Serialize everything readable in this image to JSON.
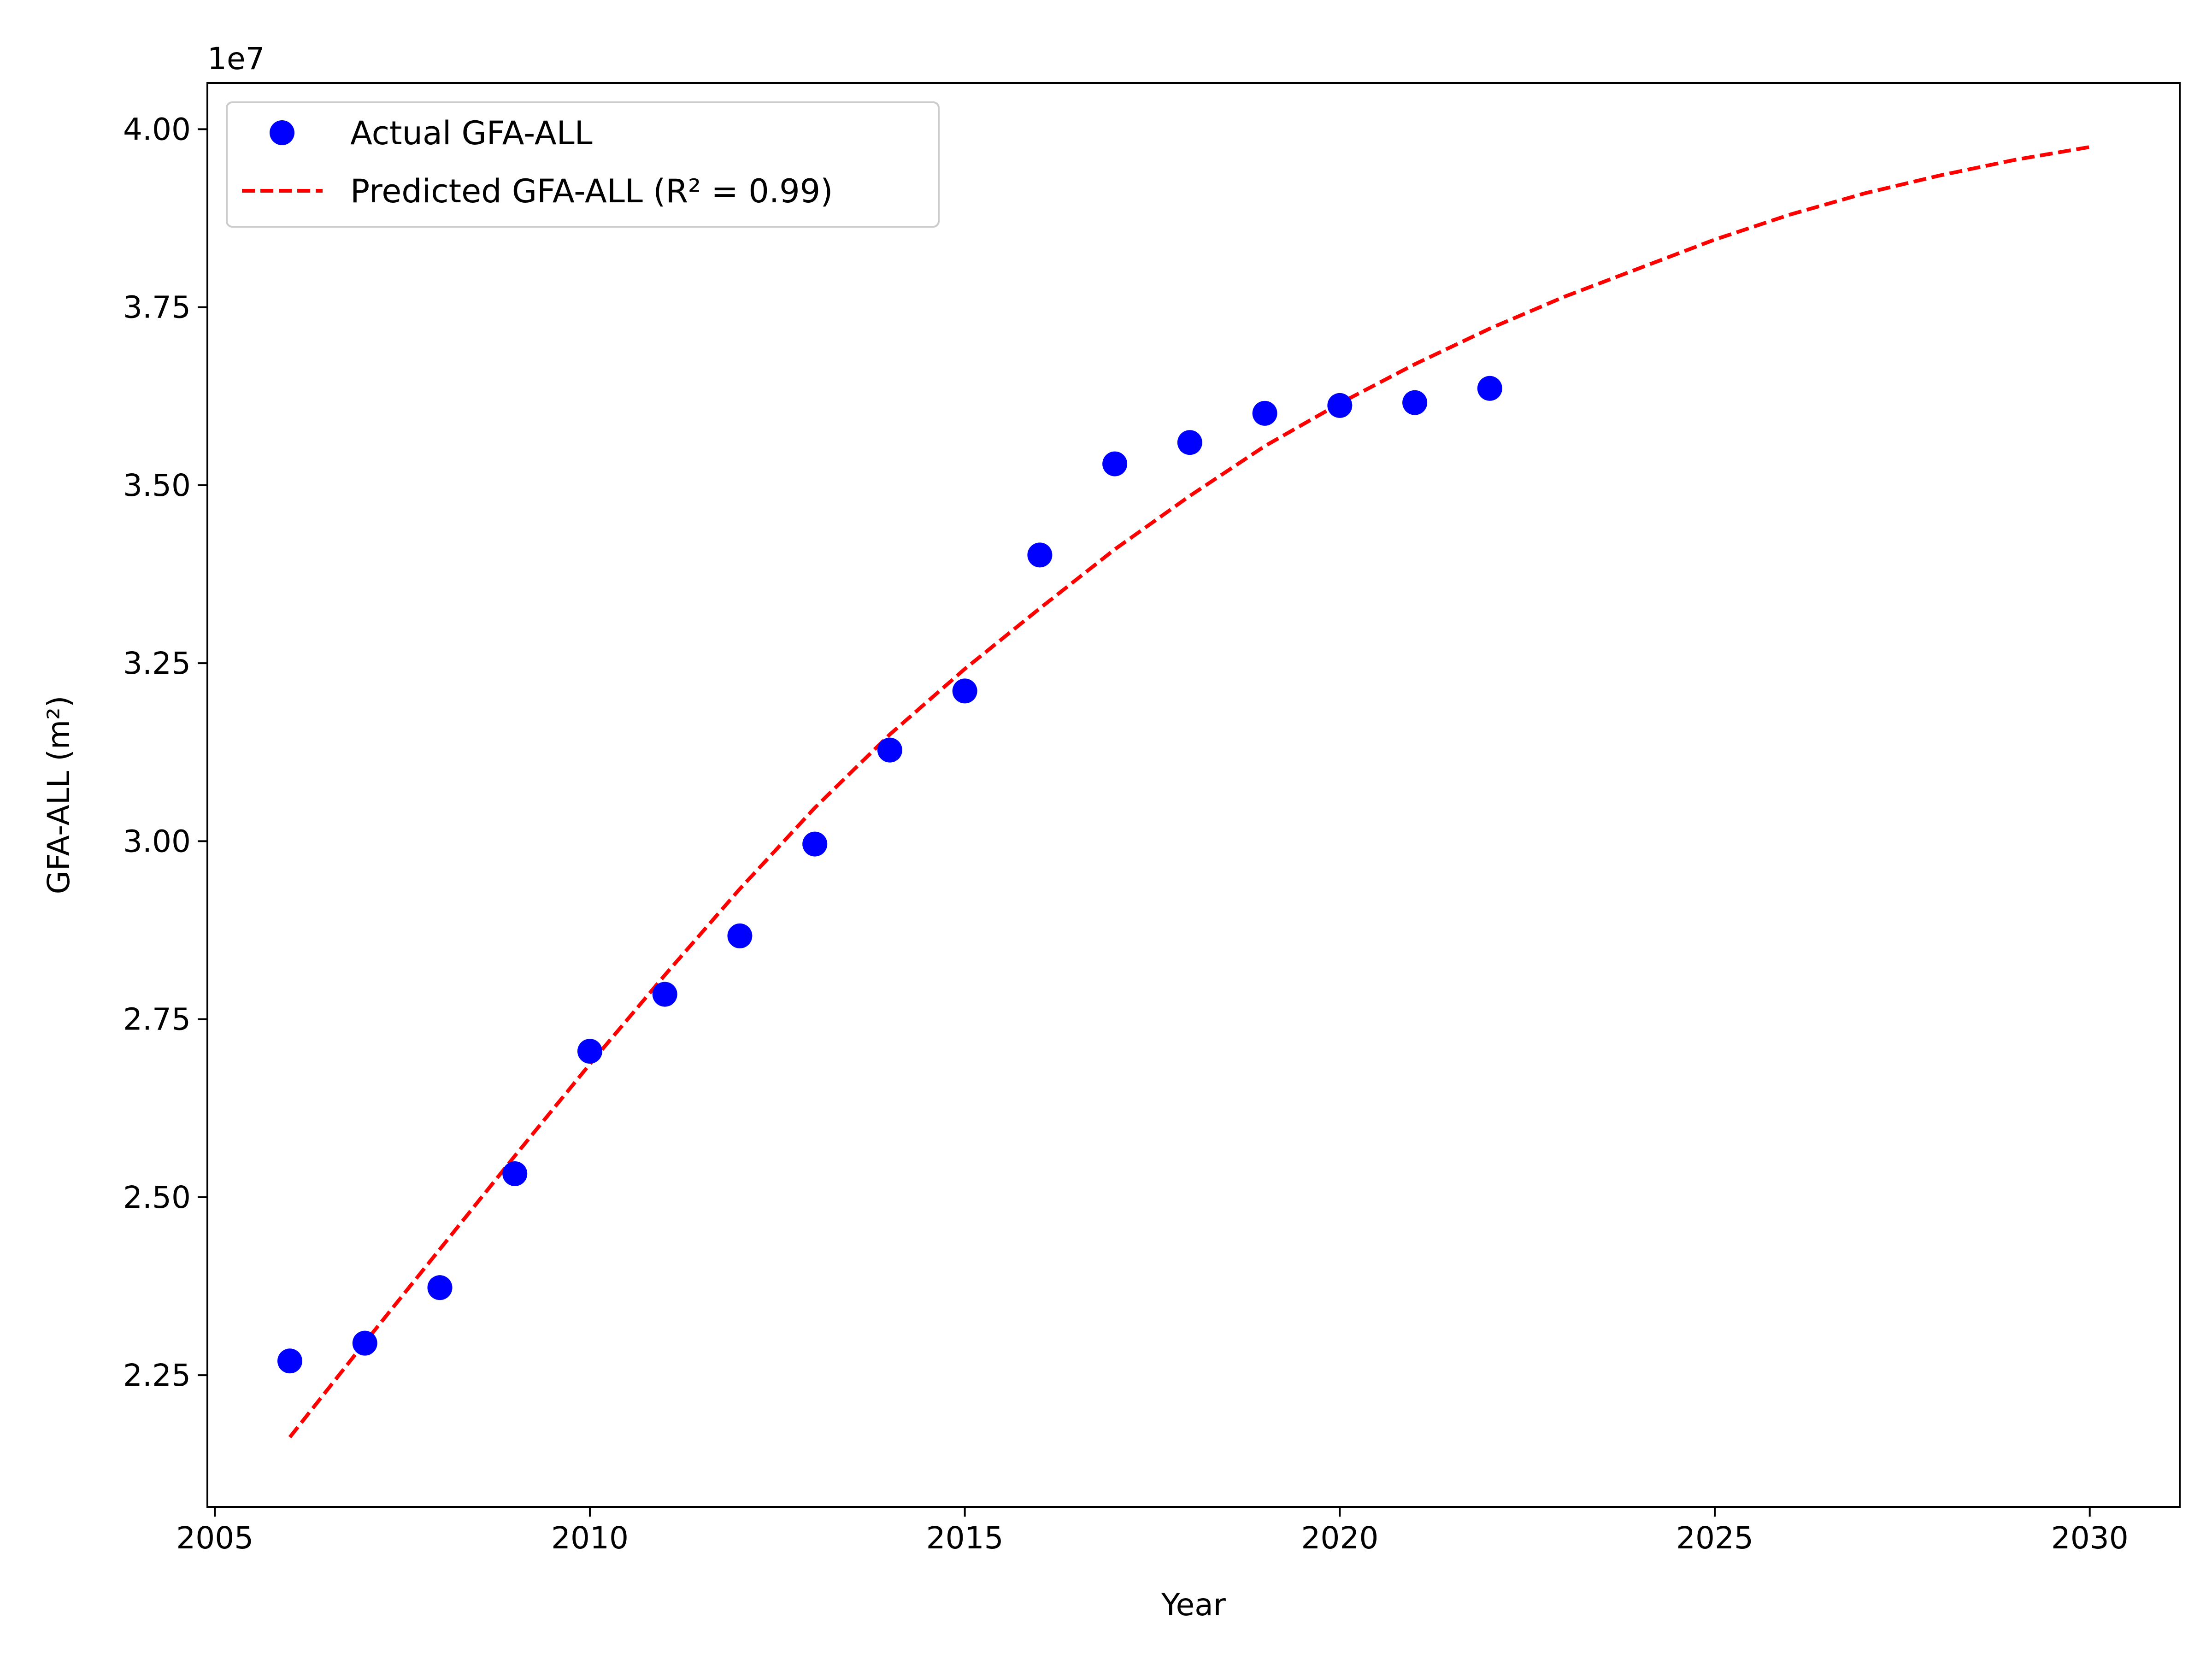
{
  "chart_data": {
    "type": "scatter",
    "title": "",
    "xlabel": "Year",
    "ylabel": "GFA-ALL (m²)",
    "y_offset_label": "1e7",
    "y_scale_factor": 10000000,
    "xlim": [
      2004.9,
      2031.2
    ],
    "ylim": [
      20.65,
      40.65
    ],
    "x_ticks": [
      2005,
      2010,
      2015,
      2020,
      2025,
      2030
    ],
    "x_tick_labels": [
      "2005",
      "2010",
      "2015",
      "2020",
      "2025",
      "2030"
    ],
    "y_ticks": [
      22.5,
      25.0,
      27.5,
      30.0,
      32.5,
      35.0,
      37.5,
      40.0
    ],
    "y_tick_labels": [
      "2.25",
      "2.50",
      "2.75",
      "3.00",
      "3.25",
      "3.50",
      "3.75",
      "4.00"
    ],
    "grid": false,
    "legend_position": "top-left",
    "series": [
      {
        "name": "Actual GFA-ALL",
        "kind": "scatter",
        "color": "#0000ff",
        "x": [
          2006,
          2007,
          2008,
          2009,
          2010,
          2011,
          2012,
          2013,
          2014,
          2015,
          2016,
          2017,
          2018,
          2019,
          2020,
          2021,
          2022
        ],
        "y": [
          22.7,
          22.95,
          23.73,
          25.33,
          27.05,
          27.85,
          28.67,
          29.96,
          31.28,
          32.11,
          34.02,
          35.3,
          35.6,
          36.01,
          36.12,
          36.16,
          36.36
        ]
      },
      {
        "name": "Predicted GFA-ALL (R² = 0.99)",
        "kind": "line",
        "color": "#ff0000",
        "dashed": true,
        "x": [
          2006,
          2007,
          2008,
          2009,
          2010,
          2011,
          2012,
          2013,
          2014,
          2015,
          2016,
          2017,
          2018,
          2019,
          2020,
          2021,
          2022,
          2023,
          2024,
          2025,
          2026,
          2027,
          2028,
          2029,
          2030
        ],
        "y": [
          21.63,
          22.96,
          24.27,
          25.58,
          26.87,
          28.12,
          29.33,
          30.47,
          31.5,
          32.42,
          33.27,
          34.1,
          34.85,
          35.55,
          36.15,
          36.7,
          37.2,
          37.65,
          38.05,
          38.45,
          38.8,
          39.1,
          39.35,
          39.57,
          39.75
        ]
      }
    ]
  }
}
